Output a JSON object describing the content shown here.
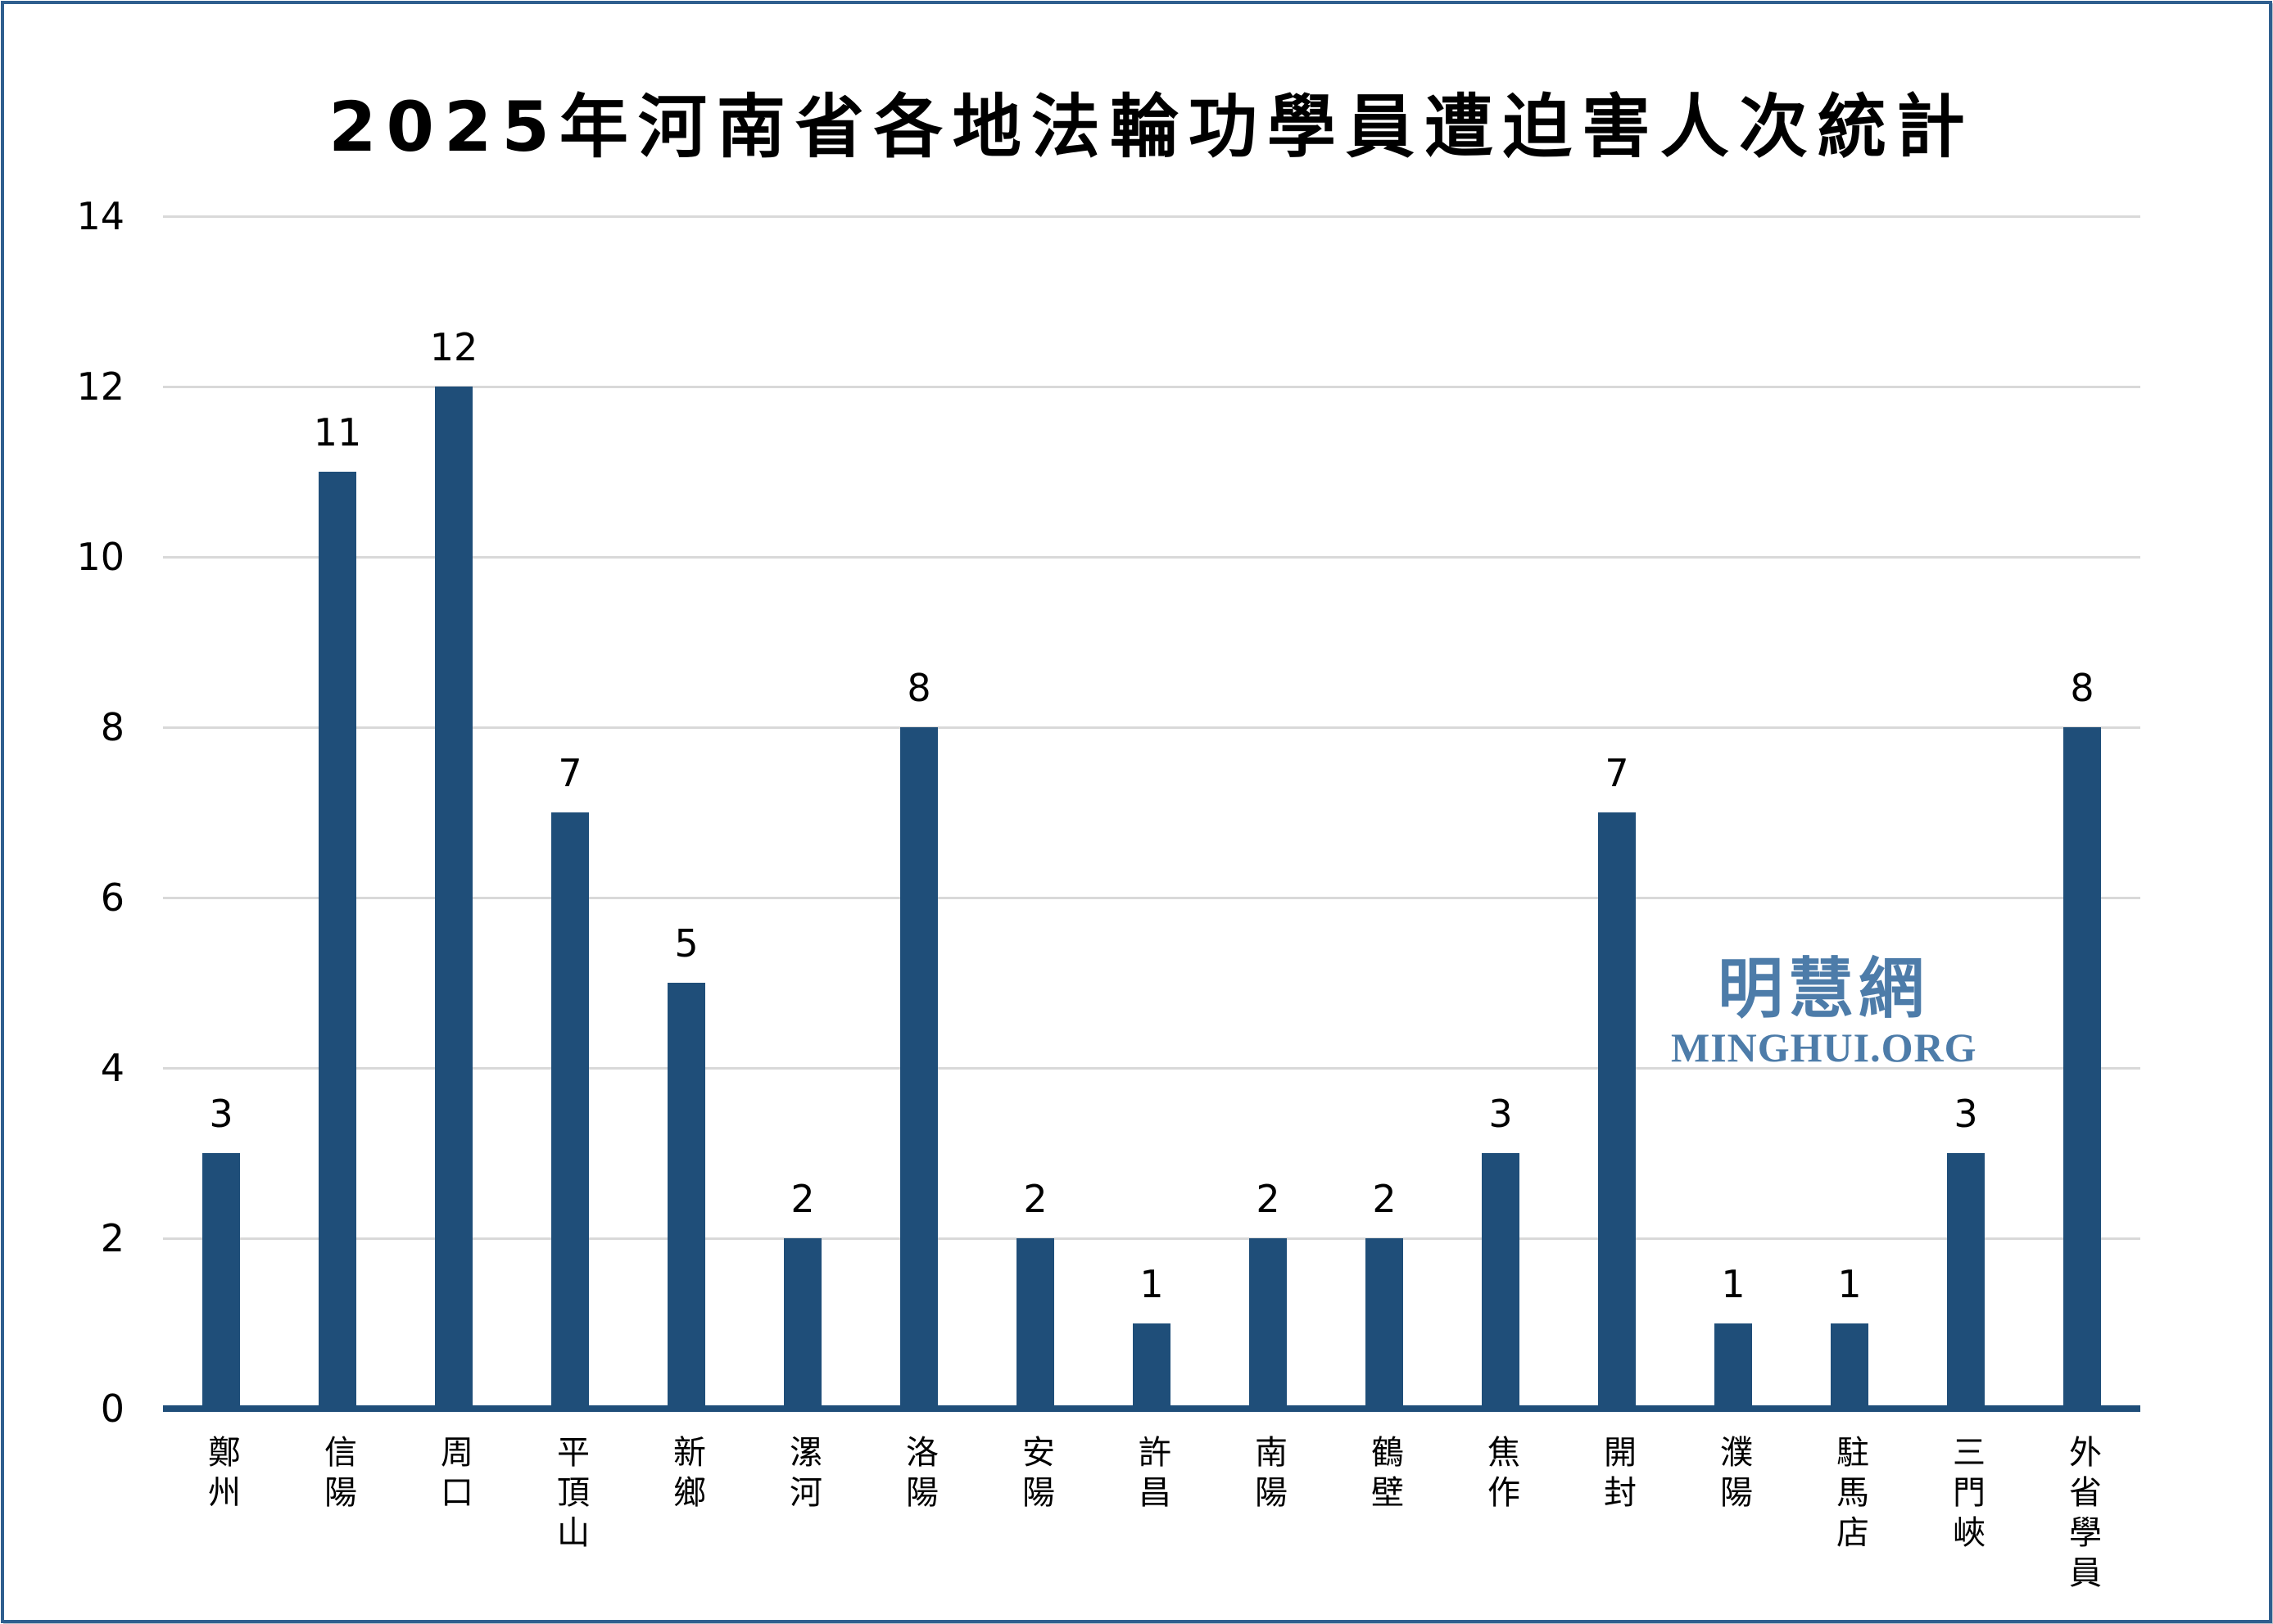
{
  "title": "2025年河南省各地法輪功學員遭迫害人次統計",
  "watermark": {
    "cjk": "明慧網",
    "latin": "MINGHUI.ORG",
    "color": "#4D7CA9"
  },
  "colors": {
    "bar": "#1F4E79",
    "axis_line": "#1F4E79",
    "gridline": "#D9D9D9",
    "frame_border": "#2F5F8F",
    "text": "#000000"
  },
  "chart_data": {
    "type": "bar",
    "title": "2025年河南省各地法輪功學員遭迫害人次統計",
    "categories": [
      "鄭州",
      "信陽",
      "周口",
      "平頂山",
      "新鄉",
      "漯河",
      "洛陽",
      "安陽",
      "許昌",
      "南陽",
      "鶴壁",
      "焦作",
      "開封",
      "濮陽",
      "駐馬店",
      "三門峽",
      "外省學員"
    ],
    "values": [
      3,
      11,
      12,
      7,
      5,
      2,
      8,
      2,
      1,
      2,
      2,
      3,
      7,
      1,
      1,
      3,
      8
    ],
    "xlabel": "",
    "ylabel": "",
    "ylim": [
      0,
      14
    ],
    "yticks": [
      0,
      2,
      4,
      6,
      8,
      10,
      12,
      14
    ],
    "grid": true,
    "gridline_orientation": "horizontal",
    "legend": "none",
    "bar_labels_shown": true,
    "x_label_orientation": "vertical"
  }
}
